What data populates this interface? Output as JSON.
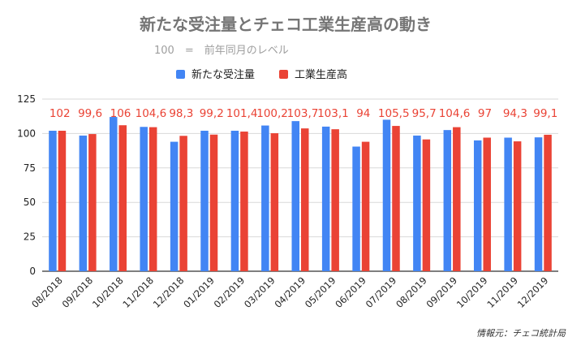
{
  "chart_data": {
    "type": "bar",
    "title": "新たな受注量とチェコ工業生産高の動き",
    "subtitle": "100　=　前年同月のレベル",
    "categories": [
      "08/2018",
      "09/2018",
      "10/2018",
      "11/2018",
      "12/2018",
      "01/2019",
      "02/2019",
      "03/2019",
      "04/2019",
      "05/2019",
      "06/2019",
      "07/2019",
      "08/2019",
      "09/2019",
      "10/2019",
      "11/2019",
      "12/2019"
    ],
    "series": [
      {
        "name": "新たな受注量",
        "color": "#4285f4",
        "values": [
          102,
          98.5,
          112,
          104.8,
          94,
          102,
          102,
          105.8,
          109,
          105,
          90.5,
          110,
          98.5,
          102.5,
          95,
          97,
          97.2
        ]
      },
      {
        "name": "工業生産高",
        "color": "#ea4335",
        "values": [
          102,
          99.6,
          106,
          104.6,
          98.3,
          99.2,
          101.4,
          100.2,
          103.7,
          103.1,
          94,
          105.5,
          95.7,
          104.6,
          97,
          94.3,
          99.1
        ],
        "data_labels": [
          "102",
          "99,6",
          "106",
          "104,6",
          "98,3",
          "99,2",
          "101,4",
          "100,2",
          "103,7",
          "103,1",
          "94",
          "105,5",
          "95,7",
          "104,6",
          "97",
          "94,3",
          "99,1"
        ]
      }
    ],
    "yticks": [
      "0",
      "25",
      "50",
      "75",
      "100",
      "125"
    ],
    "ylim": [
      0,
      125
    ],
    "grid": true,
    "legend": "top-center",
    "source": "情報元：チェコ統計局"
  }
}
